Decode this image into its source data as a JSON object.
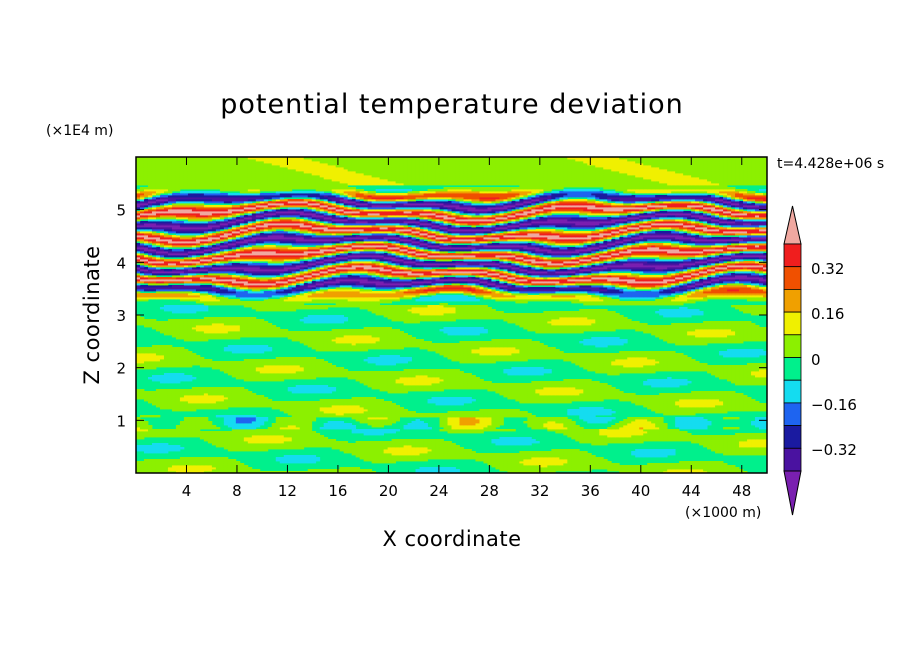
{
  "chart_data": {
    "type": "heatmap",
    "title": "potential temperature deviation",
    "xlabel": "X coordinate",
    "ylabel": "Z coordinate",
    "x_unit": "(×1000 m)",
    "y_unit": "(×1E4 m)",
    "time_label": "t=4.428e+06 s",
    "xlim": [
      0,
      50
    ],
    "ylim": [
      0,
      6
    ],
    "x_ticks": [
      "4",
      "8",
      "12",
      "16",
      "20",
      "24",
      "28",
      "32",
      "36",
      "40",
      "44",
      "48"
    ],
    "y_ticks": [
      "1",
      "2",
      "3",
      "4",
      "5"
    ],
    "colorbar": {
      "labels": [
        "0.32",
        "0.16",
        "0",
        "−0.16",
        "−0.32"
      ],
      "levels": [
        -0.4,
        -0.32,
        -0.24,
        -0.16,
        -0.08,
        0,
        0.08,
        0.16,
        0.24,
        0.32,
        0.4
      ],
      "colors": [
        "#7a1fb0",
        "#4a12a0",
        "#1a1aa0",
        "#1e64f0",
        "#14dcf0",
        "#00f08c",
        "#8cf000",
        "#f0f000",
        "#f0a000",
        "#f05000",
        "#f01e1e",
        "#f0a8a0"
      ]
    },
    "bands": [
      {
        "z": [
          0.0,
          3.0
        ],
        "range": "-0.08 to 0.08",
        "description": "weak mixed green"
      },
      {
        "z": [
          3.2,
          5.4
        ],
        "range": "-0.4 to 0.4",
        "description": "strong alternating layers"
      },
      {
        "z": [
          5.4,
          6.0
        ],
        "range": "0 to 0.08",
        "description": "light green"
      }
    ]
  }
}
